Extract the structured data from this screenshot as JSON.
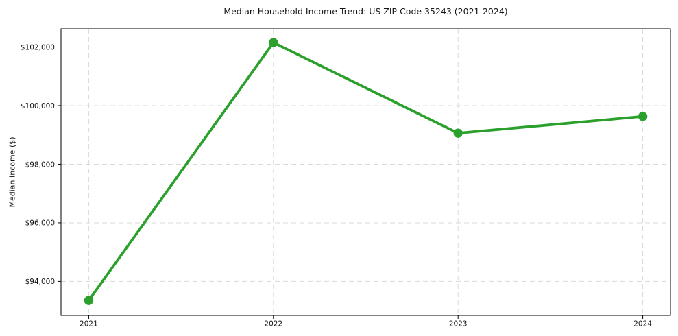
{
  "chart_data": {
    "type": "line",
    "title": "Median Household Income Trend: US ZIP Code 35243 (2021-2024)",
    "xlabel": "",
    "ylabel": "Median Income ($)",
    "x": [
      2021,
      2022,
      2023,
      2024
    ],
    "x_tick_labels": [
      "2021",
      "2022",
      "2023",
      "2024"
    ],
    "series": [
      {
        "values": [
          93350,
          102150,
          99060,
          99630
        ],
        "color": "#2ca02c",
        "marker": "circle"
      }
    ],
    "y_ticks": [
      94000,
      96000,
      98000,
      100000,
      102000
    ],
    "y_tick_labels": [
      "$94,000",
      "$96,000",
      "$98,000",
      "$100,000",
      "$102,000"
    ],
    "xlim": [
      2020.85,
      2024.15
    ],
    "ylim": [
      92840,
      102620
    ],
    "grid": "both-axes, dashed",
    "legend": "none",
    "colors": {
      "line": "#2ca02c",
      "grid": "#d9d9d9",
      "spine": "#000000",
      "text": "#141414",
      "background": "#ffffff"
    }
  }
}
